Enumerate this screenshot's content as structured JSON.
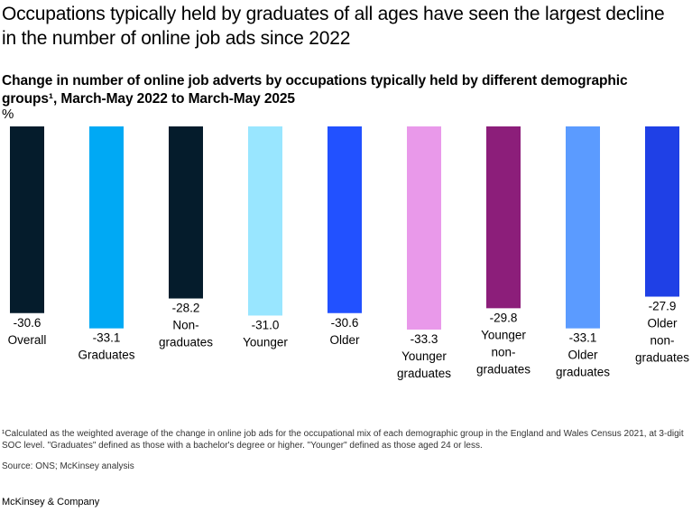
{
  "title": "Occupations typically held by graduates of all ages have seen the largest decline in the number of online job ads since 2022",
  "subtitle": "Change in number of online job adverts by occupations typically held by different demographic groups¹, March-May 2022 to March-May 2025",
  "unit": "%",
  "chart_data": {
    "type": "bar",
    "title": "Change in number of online job adverts by occupations typically held by different demographic groups¹, March-May 2022 to March-May 2025",
    "ylabel": "%",
    "xlabel": "",
    "ylim": [
      -33.3,
      0
    ],
    "grid": false,
    "categories": [
      [
        "Overall"
      ],
      [
        "Graduates"
      ],
      [
        "Non-",
        "graduates"
      ],
      [
        "Younger"
      ],
      [
        "Older"
      ],
      [
        "Younger",
        "graduates"
      ],
      [
        "Younger",
        "non-",
        "graduates"
      ],
      [
        "Older",
        "graduates"
      ],
      [
        "Older",
        "non-",
        "graduates"
      ]
    ],
    "values": [
      -30.6,
      -33.1,
      -28.2,
      -31.0,
      -30.6,
      -33.3,
      -29.8,
      -33.1,
      -27.9
    ],
    "value_labels": [
      "-30.6",
      "-33.1",
      "-28.2",
      "-31.0",
      "-30.6",
      "-33.3",
      "-29.8",
      "-33.1",
      "-27.9"
    ],
    "colors": [
      "#051c2c",
      "#00a9f4",
      "#051c2c",
      "#99e6ff",
      "#2251ff",
      "#e999ea",
      "#8c1e7a",
      "#5b9bff",
      "#1f40e6"
    ]
  },
  "footnote": "¹Calculated as the weighted average of the change in online job ads for the occupational mix of each demographic group in the England and Wales Census 2021, at 3-digit SOC level. \"Graduates\" defined as those with a bachelor's degree or higher. \"Younger\" defined as those aged 24 or less.",
  "source": "Source: ONS; McKinsey analysis",
  "brand": "McKinsey & Company"
}
